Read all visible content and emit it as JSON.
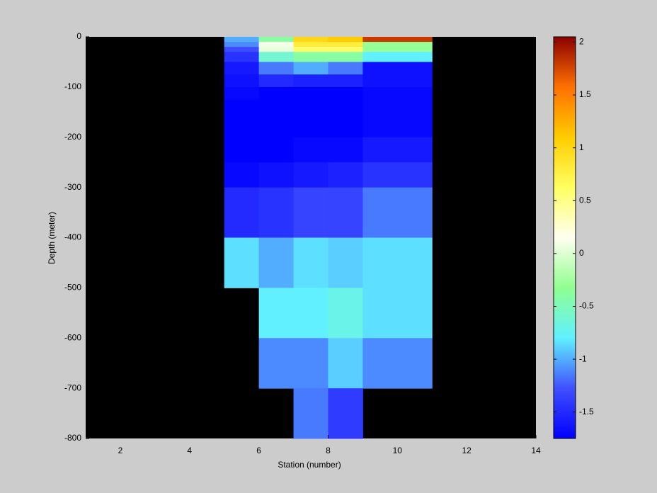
{
  "chart_data": {
    "type": "heatmap",
    "x_label": "Station (number)",
    "y_label": "Depth (meter)",
    "x_edges": [
      5,
      6,
      7,
      8,
      9,
      11
    ],
    "y_edges": [
      0,
      -10,
      -20,
      -30,
      -50,
      -75,
      -100,
      -125,
      -150,
      -200,
      -250,
      -300,
      -400,
      -500,
      -600,
      -700,
      -800
    ],
    "values": [
      [
        -1.0,
        -0.4,
        1.0,
        1.1,
        1.8
      ],
      [
        -1.1,
        0.1,
        0.8,
        0.8,
        -0.3
      ],
      [
        -1.3,
        0.05,
        0.6,
        0.6,
        -0.3
      ],
      [
        -1.45,
        -0.6,
        -0.4,
        -0.4,
        -0.8
      ],
      [
        -1.6,
        -1.15,
        -1.0,
        -1.15,
        -1.65
      ],
      [
        -1.65,
        -1.5,
        -1.55,
        -1.55,
        -1.65
      ],
      [
        -1.7,
        -1.75,
        -1.75,
        -1.75,
        -1.7
      ],
      [
        -1.75,
        -1.75,
        -1.75,
        -1.75,
        -1.7
      ],
      [
        -1.75,
        -1.75,
        -1.75,
        -1.75,
        -1.7
      ],
      [
        -1.75,
        -1.75,
        -1.7,
        -1.7,
        -1.6
      ],
      [
        -1.7,
        -1.65,
        -1.6,
        -1.55,
        -1.45
      ],
      [
        -1.5,
        -1.45,
        -1.35,
        -1.35,
        -1.15
      ],
      [
        -0.85,
        -1.0,
        -0.85,
        -0.9,
        -0.85
      ],
      [
        null,
        -0.8,
        -0.8,
        -0.7,
        -0.85
      ],
      [
        null,
        -1.1,
        -1.1,
        -0.9,
        -1.1
      ],
      [
        null,
        null,
        -1.15,
        -1.4,
        null
      ]
    ],
    "xlim": [
      1,
      14
    ],
    "xticks": [
      2,
      4,
      6,
      8,
      10,
      12,
      14
    ],
    "ylim": [
      -800,
      0
    ],
    "yticks": [
      0,
      -100,
      -200,
      -300,
      -400,
      -500,
      -600,
      -700,
      -800
    ],
    "clim": [
      -1.75,
      2.05
    ],
    "cticks": [
      -1.5,
      -1,
      -0.5,
      0,
      0.5,
      1,
      1.5,
      2
    ],
    "colormap": [
      "#0000ff",
      "#4050ff",
      "#60f0ff",
      "#90ff90",
      "#fffff0",
      "#ffff60",
      "#ffcc00",
      "#ff7000",
      "#8b0000"
    ],
    "background": "#000000"
  }
}
